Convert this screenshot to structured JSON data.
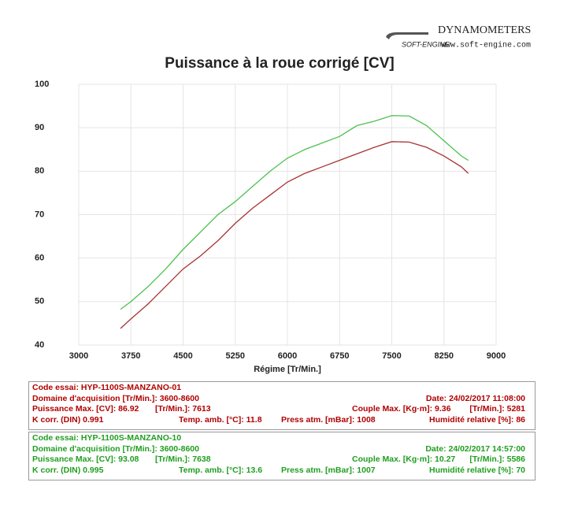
{
  "header": {
    "brand": "DYNAMOMETERS",
    "logo": "SOFT-ENGINE",
    "url": "www.soft-engine.com"
  },
  "chart_data": {
    "type": "line",
    "title": "Puissance à la roue corrigé [CV]",
    "x_label": "Régime [Tr/Min.]",
    "x": [
      3600,
      3750,
      4000,
      4250,
      4500,
      4750,
      5000,
      5250,
      5500,
      5750,
      6000,
      6250,
      6500,
      6750,
      7000,
      7250,
      7500,
      7750,
      8000,
      8250,
      8500,
      8600
    ],
    "series": [
      {
        "color": "#a83232",
        "values": [
          43.8,
          46,
          49.5,
          53.5,
          57.5,
          60.5,
          64,
          68,
          71.5,
          74.5,
          77.5,
          79.5,
          81,
          82.5,
          84,
          85.5,
          86.8,
          86.7,
          85.5,
          83.5,
          81,
          79.5
        ]
      },
      {
        "color": "#4cc24c",
        "values": [
          48.2,
          50,
          53.5,
          57.5,
          62,
          66,
          70,
          73,
          76.5,
          80,
          83,
          85,
          86.5,
          88,
          90.5,
          91.5,
          92.8,
          92.7,
          90.5,
          87,
          83.5,
          82.5
        ]
      }
    ],
    "xlim": [
      3000,
      9000
    ],
    "xticks": [
      3000,
      3750,
      4500,
      5250,
      6000,
      6750,
      7500,
      8250,
      9000
    ],
    "ylim": [
      40,
      100
    ],
    "yticks": [
      40,
      50,
      60,
      70,
      80,
      90,
      100
    ],
    "grid": true
  },
  "tests": [
    {
      "color": "#b00000",
      "rows": [
        [
          "Code essai: HYP-1100S-MANZANO-01"
        ],
        [
          "Domaine d'acquisition [Tr/Min.]: 3600-8600",
          "Date: 24/02/2017   11:08:00"
        ],
        [
          "Puissance Max. [CV]: 86.92",
          "[Tr/Min.]: 7613",
          "Couple Max. [Kg·m]: 9.36",
          "[Tr/Min.]: 5281"
        ],
        [
          "K corr. (DIN)  0.991",
          "Temp. amb. [°C]: 11.8",
          "Press atm. [mBar]: 1008",
          "Humidité relative [%]: 86"
        ]
      ]
    },
    {
      "color": "#1f9e1f",
      "rows": [
        [
          "Code essai: HYP-1100S-MANZANO-10"
        ],
        [
          "Domaine d'acquisition [Tr/Min.]: 3600-8600",
          "Date: 24/02/2017   14:57:00"
        ],
        [
          "Puissance Max. [CV]: 93.08",
          "[Tr/Min.]: 7638",
          "Couple Max. [Kg·m]: 10.27",
          "[Tr/Min.]: 5586"
        ],
        [
          "K corr. (DIN)  0.995",
          "Temp. amb. [°C]: 13.6",
          "Press atm. [mBar]: 1007",
          "Humidité relative [%]: 70"
        ]
      ]
    }
  ]
}
